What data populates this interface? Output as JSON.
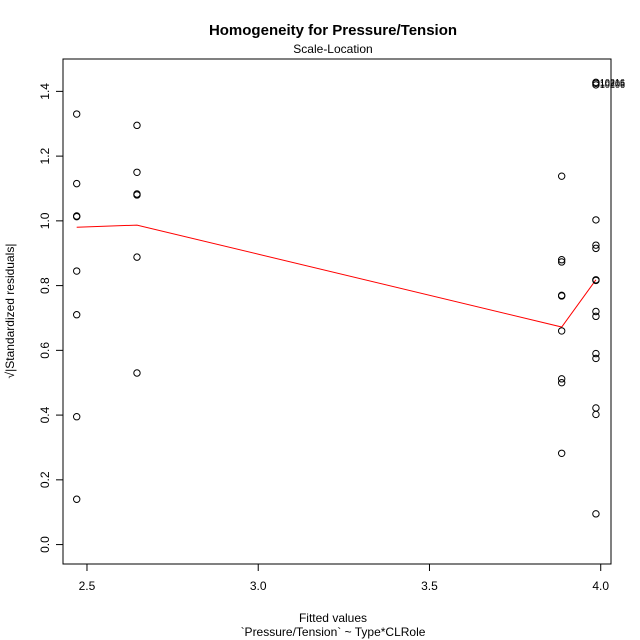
{
  "chart_data": {
    "type": "scatter",
    "title": "Homogeneity for Pressure/Tension",
    "subtitle": "Scale-Location",
    "xlabel": "Fitted values",
    "xlabel_sub": "`Pressure/Tension` ~ Type*CLRole",
    "ylabel": "√|Standardized residuals|",
    "xlim": [
      2.43,
      4.03
    ],
    "ylim": [
      -0.06,
      1.5
    ],
    "xticks": [
      2.5,
      3.0,
      3.5,
      4.0
    ],
    "xtick_labels": [
      "2.5",
      "3.0",
      "3.5",
      "4.0"
    ],
    "yticks": [
      0.0,
      0.2,
      0.4,
      0.6,
      0.8,
      1.0,
      1.2,
      1.4
    ],
    "ytick_labels": [
      "0.0",
      "0.2",
      "0.4",
      "0.6",
      "0.8",
      "1.0",
      "1.2",
      "1.4"
    ],
    "grid": false,
    "point_color": "#000000",
    "smooth_color": "#ff0000",
    "points": [
      {
        "x": 2.47,
        "y": 1.33
      },
      {
        "x": 2.47,
        "y": 1.115
      },
      {
        "x": 2.47,
        "y": 1.015
      },
      {
        "x": 2.47,
        "y": 1.013
      },
      {
        "x": 2.47,
        "y": 0.845
      },
      {
        "x": 2.47,
        "y": 0.71
      },
      {
        "x": 2.47,
        "y": 0.395
      },
      {
        "x": 2.47,
        "y": 0.14
      },
      {
        "x": 2.646,
        "y": 1.295
      },
      {
        "x": 2.646,
        "y": 1.15
      },
      {
        "x": 2.646,
        "y": 1.083
      },
      {
        "x": 2.646,
        "y": 1.08
      },
      {
        "x": 2.646,
        "y": 0.888
      },
      {
        "x": 2.646,
        "y": 0.53
      },
      {
        "x": 3.886,
        "y": 1.138
      },
      {
        "x": 3.886,
        "y": 0.88
      },
      {
        "x": 3.886,
        "y": 0.873
      },
      {
        "x": 3.886,
        "y": 0.77
      },
      {
        "x": 3.886,
        "y": 0.768
      },
      {
        "x": 3.886,
        "y": 0.66
      },
      {
        "x": 3.886,
        "y": 0.512
      },
      {
        "x": 3.886,
        "y": 0.5
      },
      {
        "x": 3.886,
        "y": 0.282
      },
      {
        "x": 3.986,
        "y": 1.428
      },
      {
        "x": 3.986,
        "y": 1.425
      },
      {
        "x": 3.986,
        "y": 1.42
      },
      {
        "x": 3.986,
        "y": 1.003
      },
      {
        "x": 3.986,
        "y": 0.925
      },
      {
        "x": 3.986,
        "y": 0.915
      },
      {
        "x": 3.986,
        "y": 0.818
      },
      {
        "x": 3.986,
        "y": 0.816
      },
      {
        "x": 3.986,
        "y": 0.72
      },
      {
        "x": 3.986,
        "y": 0.705
      },
      {
        "x": 3.986,
        "y": 0.59
      },
      {
        "x": 3.986,
        "y": 0.575
      },
      {
        "x": 3.986,
        "y": 0.422
      },
      {
        "x": 3.986,
        "y": 0.402
      },
      {
        "x": 3.986,
        "y": 0.095
      }
    ],
    "point_labels": [
      {
        "x": 3.986,
        "y": 1.428,
        "text": "10216"
      },
      {
        "x": 3.986,
        "y": 1.425,
        "text": "10205"
      },
      {
        "x": 3.986,
        "y": 1.42,
        "text": "10206"
      }
    ],
    "smooth_line": [
      {
        "x": 2.47,
        "y": 0.98
      },
      {
        "x": 2.646,
        "y": 0.987
      },
      {
        "x": 3.886,
        "y": 0.672
      },
      {
        "x": 3.986,
        "y": 0.818
      }
    ]
  }
}
